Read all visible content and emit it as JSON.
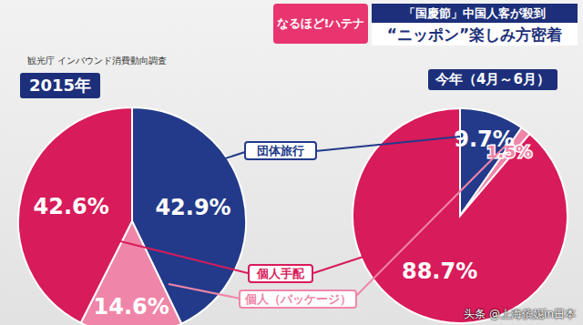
{
  "header": {
    "badge": "なるほど!ハテナ",
    "topic": "「国慶節」中国人客が殺到",
    "headline": "“ニッポン”楽しみ方密着"
  },
  "source": "観光庁 インバウンド消費動向調査",
  "watermark": "头条 @上海傧妮in日本",
  "chart_data": [
    {
      "type": "pie",
      "title": "2015年",
      "categories": [
        "団体旅行",
        "個人（パッケージ）",
        "個人手配"
      ],
      "values": [
        42.9,
        14.6,
        42.6
      ],
      "value_labels": [
        "42.9%",
        "14.6%",
        "42.6%"
      ],
      "colors": [
        "#233a8a",
        "#ef86a9",
        "#d81b5a"
      ],
      "data_labels": true
    },
    {
      "type": "pie",
      "title": "今年（4月～6月）",
      "categories": [
        "団体旅行",
        "個人（パッケージ）",
        "個人手配"
      ],
      "values": [
        9.7,
        1.5,
        88.7
      ],
      "value_labels": [
        "9.7%",
        "1.5%",
        "88.7%"
      ],
      "colors": [
        "#233a8a",
        "#ef86a9",
        "#d81b5a"
      ],
      "data_labels": true
    }
  ]
}
